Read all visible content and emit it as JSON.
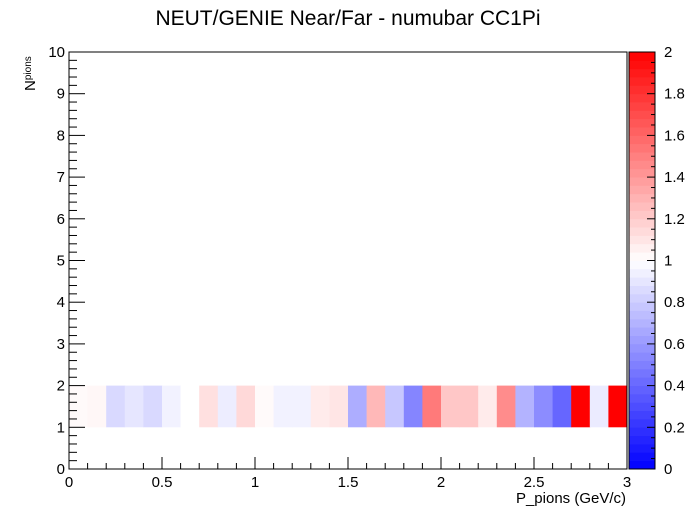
{
  "chart_data": {
    "type": "heatmap",
    "title": "NEUT/GENIE Near/Far - numubar CC1Pi",
    "xlabel": "P_pions (GeV/c)",
    "ylabel_main": "N",
    "ylabel_sub": "pions",
    "xlim": [
      0,
      3
    ],
    "ylim": [
      0,
      10
    ],
    "zlim": [
      0,
      2
    ],
    "x_ticks": [
      "0",
      "0.5",
      "1",
      "1.5",
      "2",
      "2.5",
      "3"
    ],
    "y_ticks": [
      "0",
      "1",
      "2",
      "3",
      "4",
      "5",
      "6",
      "7",
      "8",
      "9",
      "10"
    ],
    "z_ticks": [
      "0",
      "0.2",
      "0.4",
      "0.6",
      "0.8",
      "1",
      "1.2",
      "1.4",
      "1.6",
      "1.8",
      "2"
    ],
    "colorscale": [
      "#0000ff",
      "#ffffff",
      "#ff0000"
    ],
    "x_bin_width": 0.1,
    "y_bin": [
      1,
      2
    ],
    "values": [
      1.02,
      1.03,
      0.85,
      0.9,
      0.85,
      0.95,
      1.0,
      1.12,
      0.93,
      1.15,
      1.02,
      0.95,
      0.95,
      1.08,
      1.1,
      0.68,
      1.28,
      0.78,
      0.52,
      1.52,
      1.22,
      1.22,
      1.08,
      1.45,
      0.7,
      0.55,
      0.4,
      2.0,
      0.92,
      2.0
    ]
  }
}
